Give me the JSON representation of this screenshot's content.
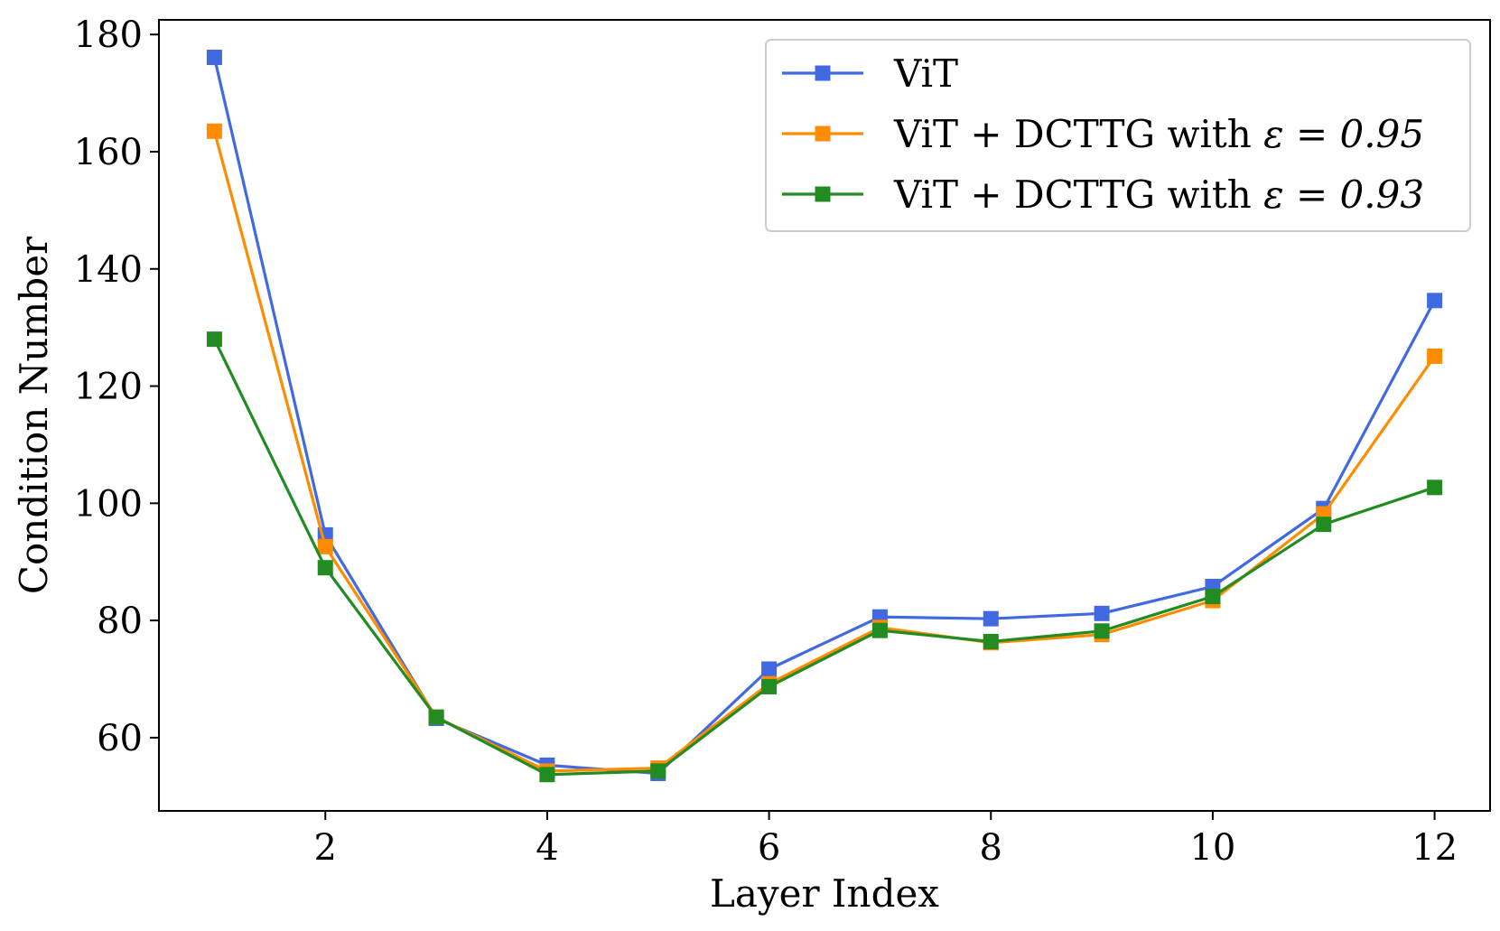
{
  "chart_data": {
    "type": "line",
    "title": "",
    "xlabel": "Layer Index",
    "ylabel": "Condition Number",
    "xlim": [
      0.5,
      12.5
    ],
    "ylim": [
      47.5,
      182.5
    ],
    "xticks": [
      2,
      4,
      6,
      8,
      10,
      12
    ],
    "yticks": [
      60,
      80,
      100,
      120,
      140,
      160,
      180
    ],
    "grid": false,
    "legend_position": "top-right",
    "x": [
      1,
      2,
      3,
      4,
      5,
      6,
      7,
      8,
      9,
      10,
      11,
      12
    ],
    "series": [
      {
        "name": "ViT",
        "legend_base": "ViT",
        "legend_eps": "",
        "color": "#4169e1",
        "marker": "square",
        "values": [
          176.1,
          94.6,
          63.3,
          55.3,
          53.9,
          71.7,
          80.6,
          80.3,
          81.2,
          85.8,
          99.1,
          134.6
        ]
      },
      {
        "name": "ViT + DCTTG with ε = 0.95",
        "legend_base": "ViT + DCTTG with ",
        "legend_eps": "ε = 0.95",
        "color": "#ff8c00",
        "marker": "square",
        "values": [
          163.5,
          92.6,
          63.5,
          54.3,
          54.8,
          69.2,
          78.8,
          76.2,
          77.6,
          83.4,
          98.2,
          125.1
        ]
      },
      {
        "name": "ViT + DCTTG with ε = 0.93",
        "legend_base": "ViT + DCTTG with ",
        "legend_eps": "ε = 0.93",
        "color": "#228b22",
        "marker": "square",
        "values": [
          128.0,
          89.0,
          63.5,
          53.7,
          54.3,
          68.7,
          78.3,
          76.4,
          78.2,
          84.1,
          96.4,
          102.7
        ]
      }
    ]
  }
}
